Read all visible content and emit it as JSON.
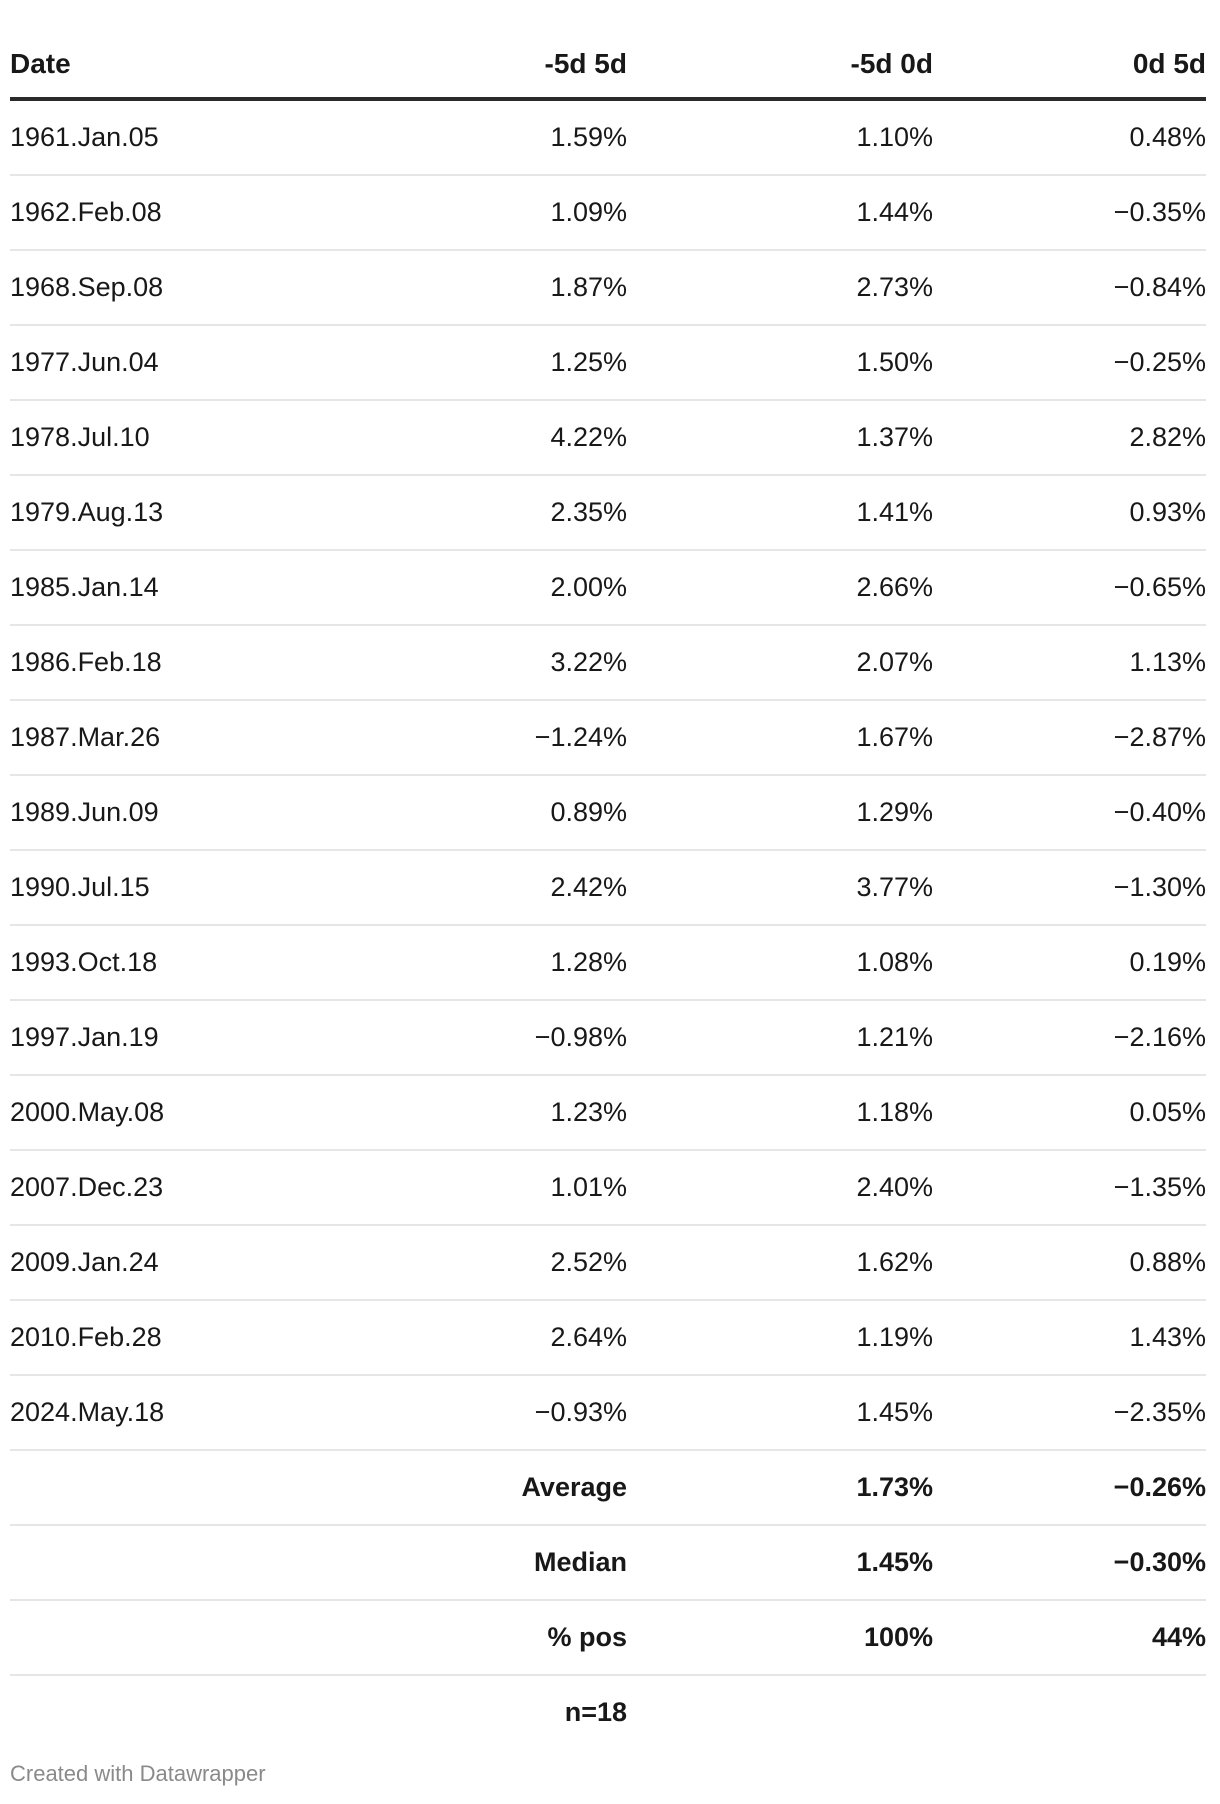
{
  "chart_data": {
    "type": "table",
    "columns": [
      "Date",
      "-5d 5d",
      "-5d 0d",
      "0d 5d"
    ],
    "rows": [
      [
        "1961.Jan.05",
        "1.59%",
        "1.10%",
        "0.48%"
      ],
      [
        "1962.Feb.08",
        "1.09%",
        "1.44%",
        "−0.35%"
      ],
      [
        "1968.Sep.08",
        "1.87%",
        "2.73%",
        "−0.84%"
      ],
      [
        "1977.Jun.04",
        "1.25%",
        "1.50%",
        "−0.25%"
      ],
      [
        "1978.Jul.10",
        "4.22%",
        "1.37%",
        "2.82%"
      ],
      [
        "1979.Aug.13",
        "2.35%",
        "1.41%",
        "0.93%"
      ],
      [
        "1985.Jan.14",
        "2.00%",
        "2.66%",
        "−0.65%"
      ],
      [
        "1986.Feb.18",
        "3.22%",
        "2.07%",
        "1.13%"
      ],
      [
        "1987.Mar.26",
        "−1.24%",
        "1.67%",
        "−2.87%"
      ],
      [
        "1989.Jun.09",
        "0.89%",
        "1.29%",
        "−0.40%"
      ],
      [
        "1990.Jul.15",
        "2.42%",
        "3.77%",
        "−1.30%"
      ],
      [
        "1993.Oct.18",
        "1.28%",
        "1.08%",
        "0.19%"
      ],
      [
        "1997.Jan.19",
        "−0.98%",
        "1.21%",
        "−2.16%"
      ],
      [
        "2000.May.08",
        "1.23%",
        "1.18%",
        "0.05%"
      ],
      [
        "2007.Dec.23",
        "1.01%",
        "2.40%",
        "−1.35%"
      ],
      [
        "2009.Jan.24",
        "2.52%",
        "1.62%",
        "0.88%"
      ],
      [
        "2010.Feb.28",
        "2.64%",
        "1.19%",
        "1.43%"
      ],
      [
        "2024.May.18",
        "−0.93%",
        "1.45%",
        "−2.35%"
      ]
    ],
    "summary_rows": [
      [
        "",
        "Average",
        "1.73%",
        "−0.26%"
      ],
      [
        "",
        "Median",
        "1.45%",
        "−0.30%"
      ],
      [
        "",
        "% pos",
        "100%",
        "44%"
      ],
      [
        "",
        "n=18",
        "",
        ""
      ]
    ]
  },
  "footer": {
    "credit": "Created with Datawrapper"
  }
}
